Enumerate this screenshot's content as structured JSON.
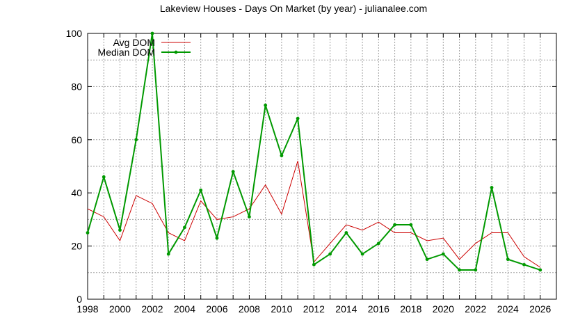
{
  "chart_data": {
    "type": "line",
    "title": "Lakeview Houses - Days On Market (by year) - julianalee.com",
    "xlabel": "",
    "ylabel": "",
    "xlim": [
      1998,
      2027
    ],
    "ylim": [
      0,
      100
    ],
    "xticks": [
      "1998",
      "2000",
      "2002",
      "2004",
      "2006",
      "2008",
      "2010",
      "2012",
      "2014",
      "2016",
      "2018",
      "2020",
      "2022",
      "2024",
      "2026"
    ],
    "yticks": [
      "0",
      "20",
      "40",
      "60",
      "80",
      "100"
    ],
    "grid": true,
    "legend_position": "top-left",
    "x": [
      1998,
      1999,
      2000,
      2001,
      2002,
      2003,
      2004,
      2005,
      2006,
      2007,
      2008,
      2009,
      2010,
      2011,
      2012,
      2013,
      2014,
      2015,
      2016,
      2017,
      2018,
      2019,
      2020,
      2021,
      2022,
      2023,
      2024,
      2025,
      2026
    ],
    "series": [
      {
        "name": "Avg DOM",
        "color": "#cc0000",
        "values": [
          34,
          31,
          22,
          39,
          36,
          25,
          22,
          37,
          30,
          31,
          34,
          43,
          32,
          52,
          14,
          21,
          28,
          26,
          29,
          25,
          25,
          22,
          23,
          15,
          21,
          25,
          25,
          16,
          12
        ]
      },
      {
        "name": "Median DOM",
        "color": "#009900",
        "values": [
          25,
          46,
          26,
          60,
          100,
          17,
          27,
          41,
          23,
          48,
          31,
          73,
          54,
          68,
          13,
          17,
          25,
          17,
          21,
          28,
          28,
          15,
          17,
          11,
          11,
          42,
          15,
          13,
          11
        ]
      }
    ]
  }
}
